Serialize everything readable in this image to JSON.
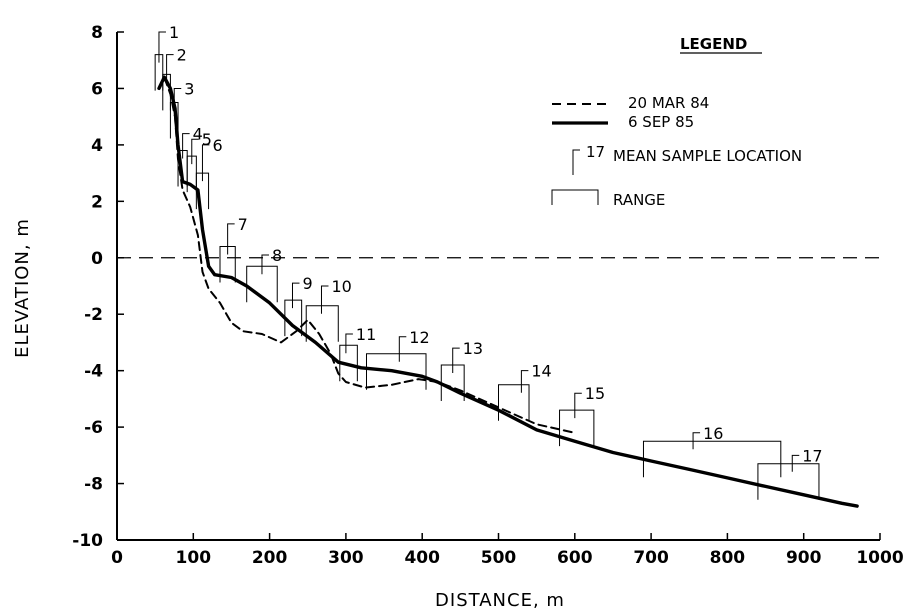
{
  "chart_data": {
    "type": "line",
    "xlabel": "DISTANCE,  m",
    "ylabel": "ELEVATION,  m",
    "xlim": [
      0,
      1000
    ],
    "ylim": [
      -10,
      8
    ],
    "x_ticks": [
      "0",
      "100",
      "200",
      "300",
      "400",
      "500",
      "600",
      "700",
      "800",
      "900",
      "1000"
    ],
    "y_ticks": [
      "8",
      "6",
      "4",
      "2",
      "0",
      "-2",
      "-4",
      "-6",
      "-8",
      "-10"
    ],
    "zero_reference_line": true,
    "legend": {
      "title": "LEGEND",
      "position": "top-right",
      "series_line_1": "20 MAR 84",
      "series_line_2": "6 SEP 85",
      "sample_label": "17",
      "sample_text": "MEAN SAMPLE LOCATION",
      "range_text": "RANGE"
    },
    "series": [
      {
        "name": "20 MAR 84",
        "style": "dashed",
        "points": [
          [
            55,
            6.0
          ],
          [
            62,
            6.4
          ],
          [
            70,
            5.8
          ],
          [
            76,
            5.0
          ],
          [
            80,
            3.5
          ],
          [
            86,
            2.4
          ],
          [
            96,
            1.8
          ],
          [
            106,
            0.8
          ],
          [
            112,
            -0.5
          ],
          [
            120,
            -1.1
          ],
          [
            135,
            -1.6
          ],
          [
            150,
            -2.3
          ],
          [
            165,
            -2.6
          ],
          [
            190,
            -2.7
          ],
          [
            215,
            -3.0
          ],
          [
            235,
            -2.6
          ],
          [
            250,
            -2.2
          ],
          [
            265,
            -2.7
          ],
          [
            280,
            -3.4
          ],
          [
            290,
            -4.1
          ],
          [
            300,
            -4.4
          ],
          [
            325,
            -4.6
          ],
          [
            360,
            -4.5
          ],
          [
            395,
            -4.3
          ],
          [
            420,
            -4.4
          ],
          [
            450,
            -4.7
          ],
          [
            500,
            -5.3
          ],
          [
            550,
            -5.9
          ],
          [
            600,
            -6.2
          ]
        ]
      },
      {
        "name": "6 SEP 85",
        "style": "solid",
        "points": [
          [
            55,
            6.0
          ],
          [
            62,
            6.4
          ],
          [
            70,
            6.0
          ],
          [
            76,
            5.3
          ],
          [
            80,
            4.0
          ],
          [
            86,
            2.7
          ],
          [
            96,
            2.6
          ],
          [
            106,
            2.4
          ],
          [
            112,
            1.0
          ],
          [
            120,
            -0.3
          ],
          [
            128,
            -0.6
          ],
          [
            150,
            -0.7
          ],
          [
            170,
            -1.0
          ],
          [
            200,
            -1.6
          ],
          [
            230,
            -2.4
          ],
          [
            260,
            -3.0
          ],
          [
            290,
            -3.7
          ],
          [
            320,
            -3.9
          ],
          [
            360,
            -4.0
          ],
          [
            400,
            -4.2
          ],
          [
            420,
            -4.4
          ],
          [
            450,
            -4.8
          ],
          [
            500,
            -5.4
          ],
          [
            550,
            -6.1
          ],
          [
            600,
            -6.5
          ],
          [
            650,
            -6.9
          ],
          [
            700,
            -7.2
          ],
          [
            750,
            -7.5
          ],
          [
            800,
            -7.8
          ],
          [
            850,
            -8.1
          ],
          [
            900,
            -8.4
          ],
          [
            950,
            -8.7
          ],
          [
            970,
            -8.8
          ]
        ]
      }
    ],
    "samples": [
      {
        "label": "1",
        "mean_x": 55,
        "mean_y": 8.0,
        "range": [
          50,
          60
        ],
        "top": 7.2
      },
      {
        "label": "2",
        "mean_x": 65,
        "mean_y": 7.2,
        "range": [
          60,
          70
        ],
        "top": 6.5
      },
      {
        "label": "3",
        "mean_x": 75,
        "mean_y": 6.0,
        "range": [
          70,
          80
        ],
        "top": 5.5
      },
      {
        "label": "4",
        "mean_x": 86,
        "mean_y": 4.4,
        "range": [
          80,
          92
        ],
        "top": 3.8
      },
      {
        "label": "5",
        "mean_x": 98,
        "mean_y": 4.2,
        "range": [
          92,
          104
        ],
        "top": 3.6
      },
      {
        "label": "6",
        "mean_x": 112,
        "mean_y": 4.0,
        "range": [
          104,
          120
        ],
        "top": 3.0
      },
      {
        "label": "7",
        "mean_x": 145,
        "mean_y": 1.2,
        "range": [
          135,
          155
        ],
        "top": 0.4
      },
      {
        "label": "8",
        "mean_x": 190,
        "mean_y": 0.1,
        "range": [
          170,
          210
        ],
        "top": -0.3
      },
      {
        "label": "9",
        "mean_x": 230,
        "mean_y": -0.9,
        "range": [
          220,
          242
        ],
        "top": -1.5
      },
      {
        "label": "10",
        "mean_x": 268,
        "mean_y": -1.0,
        "range": [
          248,
          290
        ],
        "top": -1.7
      },
      {
        "label": "11",
        "mean_x": 300,
        "mean_y": -2.7,
        "range": [
          292,
          315
        ],
        "top": -3.1
      },
      {
        "label": "12",
        "mean_x": 370,
        "mean_y": -2.8,
        "range": [
          327,
          405
        ],
        "top": -3.4
      },
      {
        "label": "13",
        "mean_x": 440,
        "mean_y": -3.2,
        "range": [
          425,
          455
        ],
        "top": -3.8
      },
      {
        "label": "14",
        "mean_x": 530,
        "mean_y": -4.0,
        "range": [
          500,
          540
        ],
        "top": -4.5
      },
      {
        "label": "15",
        "mean_x": 600,
        "mean_y": -4.8,
        "range": [
          580,
          625
        ],
        "top": -5.4
      },
      {
        "label": "16",
        "mean_x": 755,
        "mean_y": -6.2,
        "range": [
          690,
          870
        ],
        "top": -6.5
      },
      {
        "label": "17",
        "mean_x": 885,
        "mean_y": -7.0,
        "range": [
          840,
          920
        ],
        "top": -7.3
      }
    ]
  }
}
